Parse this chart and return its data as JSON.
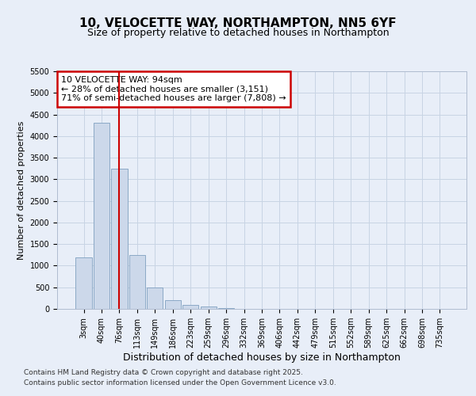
{
  "title": "10, VELOCETTE WAY, NORTHAMPTON, NN5 6YF",
  "subtitle": "Size of property relative to detached houses in Northampton",
  "xlabel": "Distribution of detached houses by size in Northampton",
  "ylabel": "Number of detached properties",
  "categories": [
    "3sqm",
    "40sqm",
    "76sqm",
    "113sqm",
    "149sqm",
    "186sqm",
    "223sqm",
    "259sqm",
    "296sqm",
    "332sqm",
    "369sqm",
    "406sqm",
    "442sqm",
    "479sqm",
    "515sqm",
    "552sqm",
    "589sqm",
    "625sqm",
    "662sqm",
    "698sqm",
    "735sqm"
  ],
  "values": [
    1200,
    4300,
    3250,
    1250,
    500,
    200,
    90,
    50,
    20,
    0,
    0,
    0,
    0,
    0,
    0,
    0,
    0,
    0,
    0,
    0,
    0
  ],
  "bar_color": "#ccd8ea",
  "bar_edge_color": "#7fa0c0",
  "vline_position": 2.0,
  "vline_color": "#cc0000",
  "annotation_text": "10 VELOCETTE WAY: 94sqm\n← 28% of detached houses are smaller (3,151)\n71% of semi-detached houses are larger (7,808) →",
  "annotation_box_facecolor": "#ffffff",
  "annotation_box_edgecolor": "#cc0000",
  "grid_color": "#c8d4e4",
  "background_color": "#e8eef8",
  "ylim": [
    0,
    5500
  ],
  "yticks": [
    0,
    500,
    1000,
    1500,
    2000,
    2500,
    3000,
    3500,
    4000,
    4500,
    5000,
    5500
  ],
  "footer_line1": "Contains HM Land Registry data © Crown copyright and database right 2025.",
  "footer_line2": "Contains public sector information licensed under the Open Government Licence v3.0.",
  "title_fontsize": 11,
  "subtitle_fontsize": 9,
  "tick_fontsize": 7,
  "ylabel_fontsize": 8,
  "xlabel_fontsize": 9,
  "annotation_fontsize": 8,
  "footer_fontsize": 6.5
}
